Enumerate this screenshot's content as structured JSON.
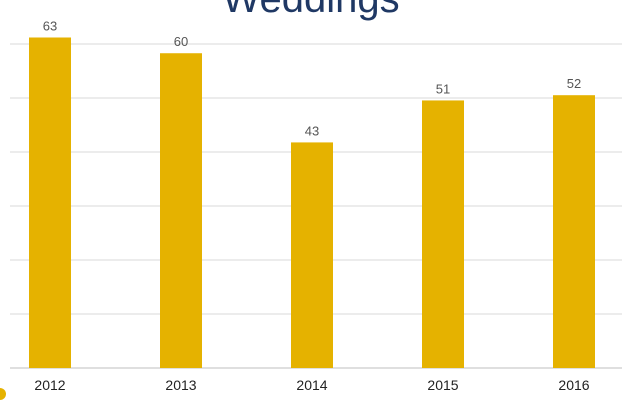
{
  "chart_data": {
    "type": "bar",
    "title": "Weddings",
    "categories": [
      "2012",
      "2013",
      "2014",
      "2015",
      "2016"
    ],
    "values": [
      63,
      60,
      43,
      51,
      52
    ],
    "ylim": [
      0,
      65
    ],
    "grid": true,
    "legend": "none",
    "bar_color": "#E5B200",
    "title_color": "#1F3864",
    "grid_color": "#D9D9D9",
    "axis_color": "#BFBFBF"
  },
  "decor": {
    "corner_color": "#E5B200"
  }
}
